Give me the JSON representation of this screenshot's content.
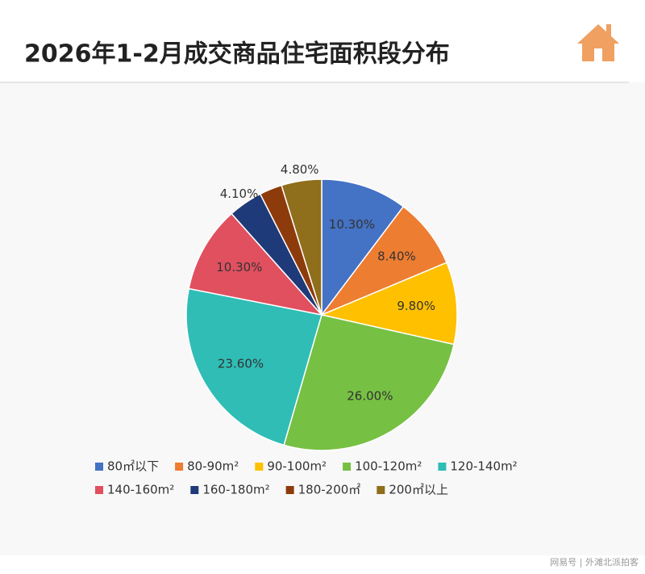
{
  "chart_data": {
    "type": "pie",
    "title": "2026年1-2月成交商品住宅面积段分布",
    "categories": [
      "80㎡以下",
      "80-90m²",
      "90-100m²",
      "100-120m²",
      "120-140m²",
      "140-160m²",
      "160-180m²",
      "180-200㎡",
      "200㎡以上"
    ],
    "values": [
      10.3,
      8.4,
      9.8,
      26.0,
      23.6,
      10.3,
      4.1,
      2.7,
      4.8
    ],
    "value_labels": [
      "10.30%",
      "8.40%",
      "9.80%",
      "26.00%",
      "23.60%",
      "10.30%",
      "4.10%",
      null,
      "4.80%"
    ],
    "colors": [
      "#4472c4",
      "#ed7d31",
      "#ffc000",
      "#76c043",
      "#2fbdb6",
      "#e0505f",
      "#1f3a78",
      "#8e3b0c",
      "#8f6e1c"
    ],
    "legend": "bottom"
  },
  "footer": "网易号 | 外滩北派拍客"
}
